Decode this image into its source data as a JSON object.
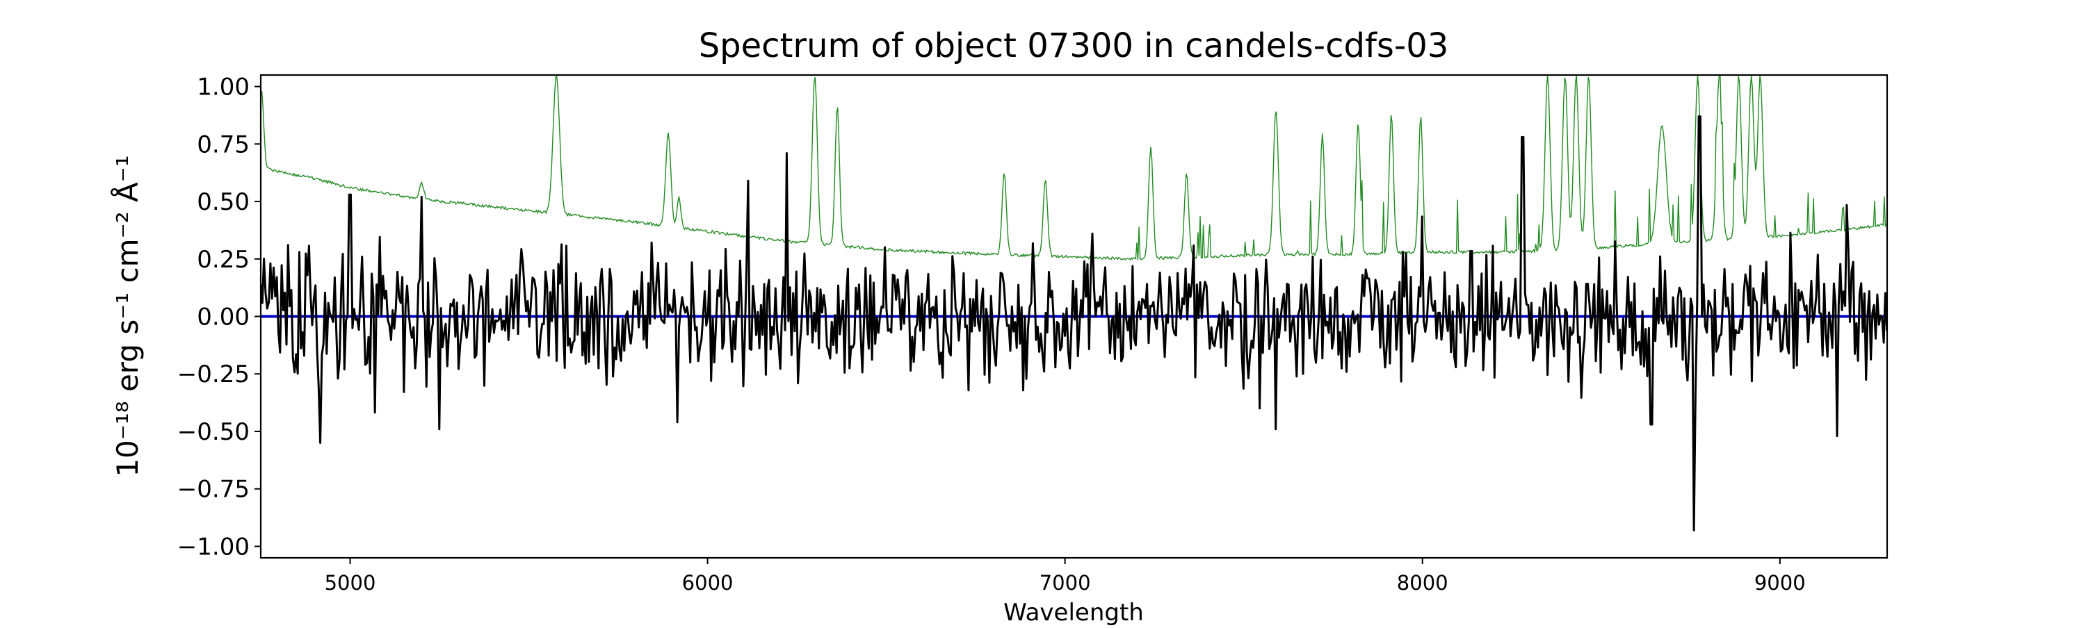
{
  "chart_data": {
    "type": "line",
    "title": "Spectrum of object 07300 in candels-cdfs-03",
    "xlabel": "Wavelength",
    "ylabel": "10⁻¹⁸ erg s⁻¹ cm⁻² Å⁻¹",
    "xlim": [
      4750,
      9300
    ],
    "ylim": [
      -1.05,
      1.05
    ],
    "xticks": [
      5000,
      6000,
      7000,
      8000,
      9000
    ],
    "xtick_labels": [
      "5000",
      "6000",
      "7000",
      "8000",
      "9000"
    ],
    "yticks": [
      1.0,
      0.75,
      0.5,
      0.25,
      0.0,
      -0.25,
      -0.5,
      -0.75,
      -1.0
    ],
    "ytick_labels": [
      "1.00",
      "0.75",
      "0.50",
      "0.25",
      "0.00",
      "−0.25",
      "−0.50",
      "−0.75",
      "−1.00"
    ],
    "grid": false,
    "series": [
      {
        "role": "error",
        "color": "#228b22",
        "continuum": {
          "x": [
            4750,
            4800,
            4900,
            5000,
            5200,
            5500,
            5800,
            6000,
            6200,
            6500,
            6800,
            7000,
            7200,
            7400,
            7600,
            7800,
            8000,
            8200,
            8400,
            8600,
            8800,
            9000,
            9200,
            9300
          ],
          "y": [
            0.65,
            0.63,
            0.6,
            0.56,
            0.51,
            0.46,
            0.41,
            0.37,
            0.33,
            0.29,
            0.27,
            0.26,
            0.25,
            0.26,
            0.27,
            0.27,
            0.28,
            0.28,
            0.29,
            0.31,
            0.33,
            0.35,
            0.38,
            0.4
          ]
        },
        "features": [
          {
            "x": 4752,
            "y": 0.98,
            "w": 6
          },
          {
            "x": 5200,
            "y": 0.58,
            "w": 6
          },
          {
            "x": 5577,
            "y": 1.05,
            "w": 9
          },
          {
            "x": 5890,
            "y": 0.8,
            "w": 7
          },
          {
            "x": 5920,
            "y": 0.52,
            "w": 5
          },
          {
            "x": 6300,
            "y": 1.05,
            "w": 7
          },
          {
            "x": 6363,
            "y": 0.92,
            "w": 6
          },
          {
            "x": 6830,
            "y": 0.63,
            "w": 6
          },
          {
            "x": 6945,
            "y": 0.6,
            "w": 6
          },
          {
            "x": 7240,
            "y": 0.74,
            "w": 6
          },
          {
            "x": 7340,
            "y": 0.62,
            "w": 6
          },
          {
            "x": 7590,
            "y": 0.9,
            "w": 7
          },
          {
            "x": 7720,
            "y": 0.79,
            "w": 6
          },
          {
            "x": 7820,
            "y": 0.84,
            "w": 6
          },
          {
            "x": 7913,
            "y": 0.88,
            "w": 6
          },
          {
            "x": 7995,
            "y": 0.87,
            "w": 6
          },
          {
            "x": 8350,
            "y": 1.05,
            "w": 7
          },
          {
            "x": 8399,
            "y": 1.05,
            "w": 7
          },
          {
            "x": 8430,
            "y": 1.05,
            "w": 7
          },
          {
            "x": 8465,
            "y": 1.05,
            "w": 7
          },
          {
            "x": 8670,
            "y": 0.83,
            "w": 12
          },
          {
            "x": 8770,
            "y": 1.05,
            "w": 7
          },
          {
            "x": 8830,
            "y": 1.05,
            "w": 7
          },
          {
            "x": 8885,
            "y": 1.05,
            "w": 7
          },
          {
            "x": 8920,
            "y": 1.05,
            "w": 7
          },
          {
            "x": 8945,
            "y": 1.05,
            "w": 7
          }
        ]
      },
      {
        "role": "flux",
        "color": "#000000",
        "x_range": [
          4750,
          9300
        ],
        "noise_sigma": 0.22,
        "features": [
          {
            "x": 4915,
            "y": -0.55
          },
          {
            "x": 5000,
            "y": 0.53
          },
          {
            "x": 5200,
            "y": 0.52
          },
          {
            "x": 5250,
            "y": -0.49
          },
          {
            "x": 5915,
            "y": -0.46
          },
          {
            "x": 6115,
            "y": 0.59
          },
          {
            "x": 6220,
            "y": 0.71
          },
          {
            "x": 7590,
            "y": -0.49
          },
          {
            "x": 8280,
            "y": 0.78
          },
          {
            "x": 8640,
            "y": -0.47
          },
          {
            "x": 8760,
            "y": -0.93
          },
          {
            "x": 8775,
            "y": 0.87
          },
          {
            "x": 9160,
            "y": -0.52
          }
        ]
      },
      {
        "role": "zero",
        "color": "#0000cc",
        "y": 0.0
      }
    ]
  }
}
